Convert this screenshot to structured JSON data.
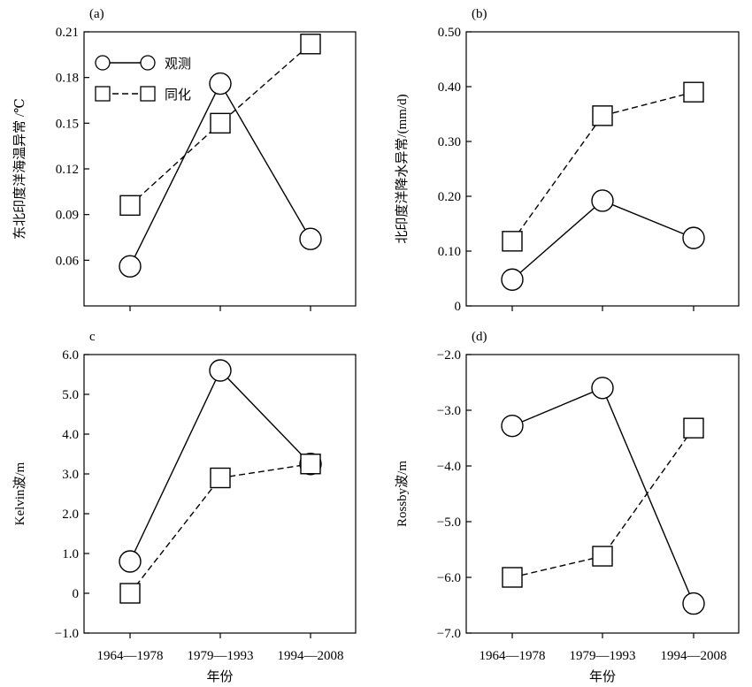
{
  "legend": {
    "observed_label": "观测",
    "assimilated_label": "同化"
  },
  "chart_data": [
    {
      "type": "line",
      "panel_label": "(a)",
      "title": "",
      "xlabel": "",
      "ylabel": "东北印度洋海温异常 /℃",
      "categories": [
        "1964—1978",
        "1979—1993",
        "1994—2008"
      ],
      "x_tick_labels_visible": false,
      "ylim": [
        0.03,
        0.21
      ],
      "y_ticks": [
        0.06,
        0.09,
        0.12,
        0.15,
        0.18,
        0.21
      ],
      "y_tick_labels": [
        "0.06",
        "0.09",
        "0.12",
        "0.15",
        "0.18",
        "0.21"
      ],
      "legend_position": "top-left",
      "series": [
        {
          "name": "观测",
          "marker": "circle",
          "line_style": "solid",
          "values": [
            0.056,
            0.176,
            0.074
          ]
        },
        {
          "name": "同化",
          "marker": "square",
          "line_style": "dashed",
          "values": [
            0.096,
            0.15,
            0.202
          ]
        }
      ]
    },
    {
      "type": "line",
      "panel_label": "(b)",
      "title": "",
      "xlabel": "",
      "ylabel": "北印度洋降水异常/(mm/d)",
      "categories": [
        "1964—1978",
        "1979—1993",
        "1994—2008"
      ],
      "x_tick_labels_visible": false,
      "ylim": [
        0,
        0.5
      ],
      "y_ticks": [
        0,
        0.1,
        0.2,
        0.3,
        0.4,
        0.5
      ],
      "y_tick_labels": [
        "0",
        "0.10",
        "0.20",
        "0.30",
        "0.40",
        "0.50"
      ],
      "series": [
        {
          "name": "观测",
          "marker": "circle",
          "line_style": "solid",
          "values": [
            0.048,
            0.192,
            0.124
          ]
        },
        {
          "name": "同化",
          "marker": "square",
          "line_style": "dashed",
          "values": [
            0.118,
            0.347,
            0.39
          ]
        }
      ]
    },
    {
      "type": "line",
      "panel_label": "c",
      "title": "",
      "xlabel": "年份",
      "ylabel": "Kelvin波/m",
      "categories": [
        "1964—1978",
        "1979—1993",
        "1994—2008"
      ],
      "x_tick_labels_visible": true,
      "ylim": [
        -1.0,
        6.0
      ],
      "y_ticks": [
        -1,
        0,
        1,
        2,
        3,
        4,
        5,
        6
      ],
      "y_tick_labels": [
        "−1.0",
        "0",
        "1.0",
        "2.0",
        "3.0",
        "4.0",
        "5.0",
        "6.0"
      ],
      "series": [
        {
          "name": "观测",
          "marker": "circle",
          "line_style": "solid",
          "values": [
            0.8,
            5.6,
            3.25
          ]
        },
        {
          "name": "同化",
          "marker": "square",
          "line_style": "dashed",
          "values": [
            0.0,
            2.9,
            3.25
          ]
        }
      ]
    },
    {
      "type": "line",
      "panel_label": "(d)",
      "title": "",
      "xlabel": "年份",
      "ylabel": "Rossby波/m",
      "categories": [
        "1964—1978",
        "1979—1993",
        "1994—2008"
      ],
      "x_tick_labels_visible": true,
      "ylim": [
        -7.0,
        -2.0
      ],
      "y_ticks": [
        -7,
        -6,
        -5,
        -4,
        -3,
        -2
      ],
      "y_tick_labels": [
        "−7.0",
        "−6.0",
        "−5.0",
        "−4.0",
        "−3.0",
        "−2.0"
      ],
      "series": [
        {
          "name": "观测",
          "marker": "circle",
          "line_style": "solid",
          "values": [
            -3.28,
            -2.6,
            -6.47
          ]
        },
        {
          "name": "同化",
          "marker": "square",
          "line_style": "dashed",
          "values": [
            -6.0,
            -5.62,
            -3.32
          ]
        }
      ]
    }
  ]
}
